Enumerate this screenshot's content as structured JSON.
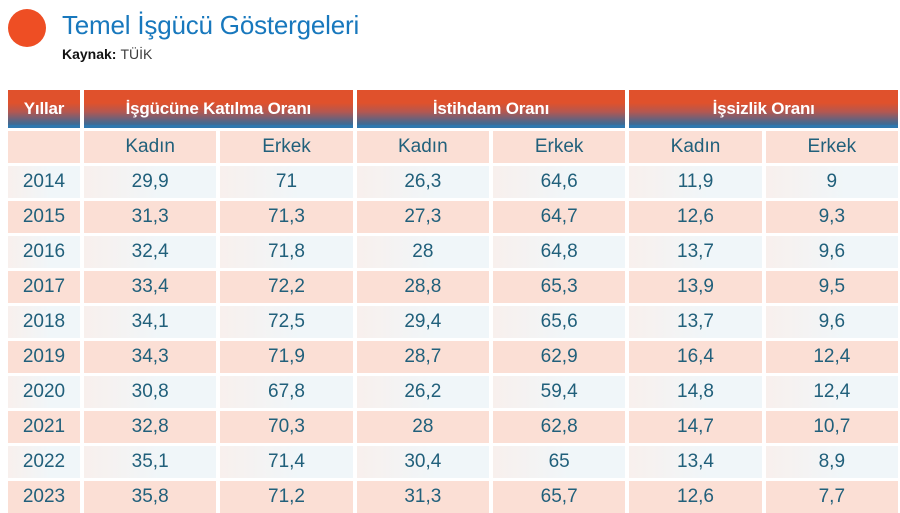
{
  "title": "Temel İşgücü Göstergeleri",
  "source_label": "Kaynak:",
  "source_value": "TÜİK",
  "colors": {
    "accent_orange": "#ee4e24",
    "title_blue": "#1878bd",
    "header_gradient_top": "#e0512c",
    "header_gradient_bottom": "#3a6d9c",
    "header_bottom_line": "#2f77ae",
    "row_pink": "#fbdfd5",
    "row_light": "#f2f7fa",
    "cell_text": "#21607b"
  },
  "table": {
    "year_header": "Yıllar",
    "groups": [
      {
        "label": "İşgücüne Katılma Oranı"
      },
      {
        "label": "İstihdam Oranı"
      },
      {
        "label": "İşsizlik Oranı"
      }
    ],
    "sub_headers": [
      "Kadın",
      "Erkek",
      "Kadın",
      "Erkek",
      "Kadın",
      "Erkek"
    ],
    "rows": [
      {
        "year": "2014",
        "values": [
          "29,9",
          "71",
          "26,3",
          "64,6",
          "11,9",
          "9"
        ]
      },
      {
        "year": "2015",
        "values": [
          "31,3",
          "71,3",
          "27,3",
          "64,7",
          "12,6",
          "9,3"
        ]
      },
      {
        "year": "2016",
        "values": [
          "32,4",
          "71,8",
          "28",
          "64,8",
          "13,7",
          "9,6"
        ]
      },
      {
        "year": "2017",
        "values": [
          "33,4",
          "72,2",
          "28,8",
          "65,3",
          "13,9",
          "9,5"
        ]
      },
      {
        "year": "2018",
        "values": [
          "34,1",
          "72,5",
          "29,4",
          "65,6",
          "13,7",
          "9,6"
        ]
      },
      {
        "year": "2019",
        "values": [
          "34,3",
          "71,9",
          "28,7",
          "62,9",
          "16,4",
          "12,4"
        ]
      },
      {
        "year": "2020",
        "values": [
          "30,8",
          "67,8",
          "26,2",
          "59,4",
          "14,8",
          "12,4"
        ]
      },
      {
        "year": "2021",
        "values": [
          "32,8",
          "70,3",
          "28",
          "62,8",
          "14,7",
          "10,7"
        ]
      },
      {
        "year": "2022",
        "values": [
          "35,1",
          "71,4",
          "30,4",
          "65",
          "13,4",
          "8,9"
        ]
      },
      {
        "year": "2023",
        "values": [
          "35,8",
          "71,2",
          "31,3",
          "65,7",
          "12,6",
          "7,7"
        ]
      }
    ]
  },
  "chart_data": {
    "type": "table",
    "title": "Temel İşgücü Göstergeleri",
    "source": "Kaynak: TÜİK",
    "columns": [
      "Yıllar",
      "İşgücüne Katılma Oranı - Kadın",
      "İşgücüne Katılma Oranı - Erkek",
      "İstihdam Oranı - Kadın",
      "İstihdam Oranı - Erkek",
      "İşsizlik Oranı - Kadın",
      "İşsizlik Oranı - Erkek"
    ],
    "rows": [
      [
        2014,
        29.9,
        71,
        26.3,
        64.6,
        11.9,
        9
      ],
      [
        2015,
        31.3,
        71.3,
        27.3,
        64.7,
        12.6,
        9.3
      ],
      [
        2016,
        32.4,
        71.8,
        28,
        64.8,
        13.7,
        9.6
      ],
      [
        2017,
        33.4,
        72.2,
        28.8,
        65.3,
        13.9,
        9.5
      ],
      [
        2018,
        34.1,
        72.5,
        29.4,
        65.6,
        13.7,
        9.6
      ],
      [
        2019,
        34.3,
        71.9,
        28.7,
        62.9,
        16.4,
        12.4
      ],
      [
        2020,
        30.8,
        67.8,
        26.2,
        59.4,
        14.8,
        12.4
      ],
      [
        2021,
        32.8,
        70.3,
        28,
        62.8,
        14.7,
        10.7
      ],
      [
        2022,
        35.1,
        71.4,
        30.4,
        65,
        13.4,
        8.9
      ],
      [
        2023,
        35.8,
        71.2,
        31.3,
        65.7,
        12.6,
        7.7
      ]
    ]
  }
}
